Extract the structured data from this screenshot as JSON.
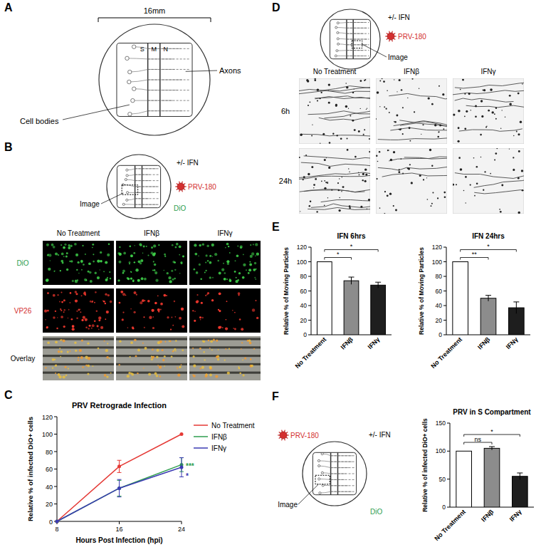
{
  "panels": {
    "A": {
      "letter": "A",
      "scale": "16mm",
      "compartments": [
        "S",
        "M",
        "N"
      ],
      "cell_bodies": "Cell bodies",
      "axons": "Axons"
    },
    "B": {
      "letter": "B",
      "treatment": "+/- IFN",
      "virus": "PRV-180",
      "dye": "DiO",
      "image": "Image",
      "columns": [
        "No Treatment",
        "IFNβ",
        "IFNγ"
      ],
      "rows": [
        "DiO",
        "VP26",
        "Overlay"
      ]
    },
    "C": {
      "letter": "C"
    },
    "D": {
      "letter": "D",
      "treatment": "+/- IFN",
      "virus": "PRV-180",
      "image": "Image",
      "columns": [
        "No Treatment",
        "IFNβ",
        "IFNγ"
      ],
      "rows": [
        "6h",
        "24h"
      ]
    },
    "E": {
      "letter": "E"
    },
    "F": {
      "letter": "F",
      "treatment": "+/- IFN",
      "virus": "PRV-180",
      "dye": "DiO",
      "image": "Image"
    }
  },
  "chart_data": [
    {
      "type": "line",
      "title": "PRV Retrograde Infection",
      "x_label": "Hours Post Infection (hpi)",
      "y_label": "Relative % of infected DiO+ cells",
      "x": [
        8,
        16,
        24
      ],
      "xlim": [
        8,
        24
      ],
      "xticks": [
        8,
        16,
        24
      ],
      "ylim": [
        0,
        120
      ],
      "yticks": [
        0,
        20,
        40,
        60,
        80,
        100,
        120
      ],
      "grid": false,
      "legend": "right",
      "marker": "circle",
      "series": [
        {
          "name": "No Treatment",
          "color": "#e53935",
          "values": [
            0,
            63,
            100
          ],
          "errors": [
            null,
            7,
            null
          ]
        },
        {
          "name": "IFNβ",
          "color": "#2e9e4f",
          "values": [
            0,
            38,
            65
          ],
          "errors": [
            null,
            9,
            8
          ],
          "significance": [
            null,
            null,
            "***"
          ]
        },
        {
          "name": "IFNγ",
          "color": "#3b3bb3",
          "values": [
            0,
            38,
            62
          ],
          "errors": [
            null,
            10,
            11
          ],
          "significance": [
            null,
            null,
            "*"
          ]
        }
      ]
    },
    {
      "type": "bar",
      "title": "IFN 6hrs",
      "y_label": "Relative % of Moving Particles",
      "categories": [
        "No Treatment",
        "IFNβ",
        "IFNγ"
      ],
      "values": [
        100,
        74,
        68
      ],
      "errors": [
        null,
        5,
        4
      ],
      "colors": [
        "#ffffff",
        "#8c8c8c",
        "#1e1e1e"
      ],
      "ylim": [
        0,
        120
      ],
      "yticks": [
        0,
        20,
        40,
        60,
        80,
        100,
        120
      ],
      "grid": false,
      "comparisons": [
        {
          "pair": [
            0,
            1
          ],
          "label": "*"
        },
        {
          "pair": [
            0,
            2
          ],
          "label": "*"
        }
      ]
    },
    {
      "type": "bar",
      "title": "IFN 24hrs",
      "y_label": "Relative % of Moving Particles",
      "categories": [
        "No Treatment",
        "IFNβ",
        "IFNγ"
      ],
      "values": [
        100,
        50,
        37
      ],
      "errors": [
        null,
        4,
        8
      ],
      "colors": [
        "#ffffff",
        "#8c8c8c",
        "#1e1e1e"
      ],
      "ylim": [
        0,
        120
      ],
      "yticks": [
        0,
        20,
        40,
        60,
        80,
        100,
        120
      ],
      "grid": false,
      "comparisons": [
        {
          "pair": [
            0,
            1
          ],
          "label": "**"
        },
        {
          "pair": [
            0,
            2
          ],
          "label": "*"
        }
      ]
    },
    {
      "type": "bar",
      "title": "PRV in S Compartment",
      "y_label": "Relative % of infected DiO+ cells",
      "categories": [
        "No Treatment",
        "IFNβ",
        "IFNγ"
      ],
      "values": [
        100,
        105,
        55
      ],
      "errors": [
        null,
        3,
        6
      ],
      "colors": [
        "#ffffff",
        "#8c8c8c",
        "#1e1e1e"
      ],
      "ylim": [
        0,
        150
      ],
      "yticks": [
        0,
        50,
        100,
        150
      ],
      "grid": false,
      "comparisons": [
        {
          "pair": [
            0,
            1
          ],
          "label": "ns"
        },
        {
          "pair": [
            0,
            2
          ],
          "label": "*"
        }
      ]
    }
  ]
}
